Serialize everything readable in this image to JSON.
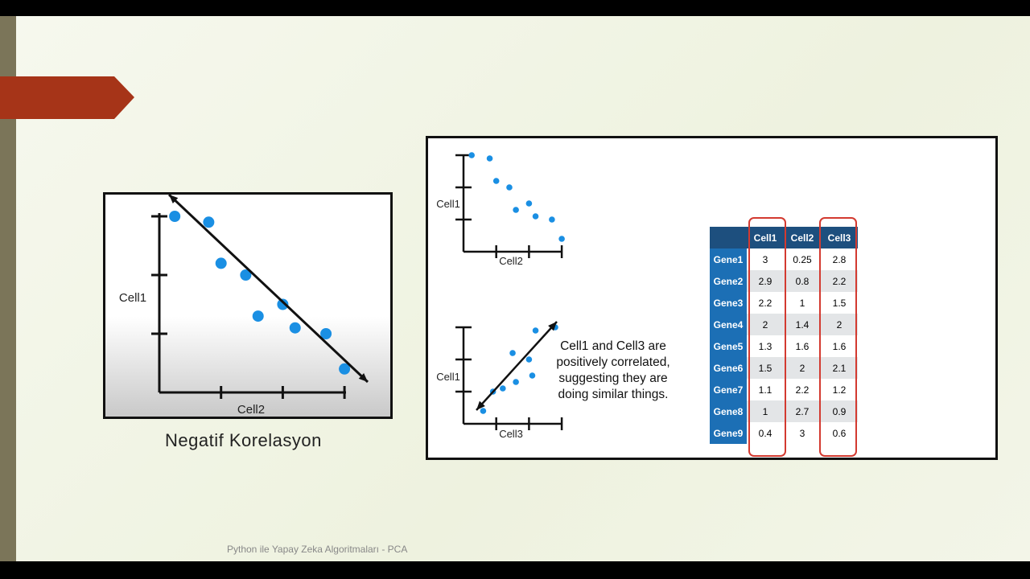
{
  "slide": {
    "caption": "Negatif Korelasyon",
    "footer": "Python ile Yapay Zeka Algoritmaları - PCA",
    "note": "Cell1 and Cell3 are positively correlated, suggesting they are doing similar things.",
    "accent": "#a63418",
    "dot_color": "#1a8fe3",
    "highlight_color": "#d33a30"
  },
  "table": {
    "headers": [
      "",
      "Cell1",
      "Cell2",
      "Cell3"
    ],
    "rows": [
      [
        "Gene1",
        "3",
        "0.25",
        "2.8"
      ],
      [
        "Gene2",
        "2.9",
        "0.8",
        "2.2"
      ],
      [
        "Gene3",
        "2.2",
        "1",
        "1.5"
      ],
      [
        "Gene4",
        "2",
        "1.4",
        "2"
      ],
      [
        "Gene5",
        "1.3",
        "1.6",
        "1.6"
      ],
      [
        "Gene6",
        "1.5",
        "2",
        "2.1"
      ],
      [
        "Gene7",
        "1.1",
        "2.2",
        "1.2"
      ],
      [
        "Gene8",
        "1",
        "2.7",
        "0.9"
      ],
      [
        "Gene9",
        "0.4",
        "3",
        "0.6"
      ]
    ]
  },
  "chart_data": [
    {
      "type": "scatter",
      "xlabel": "Cell2",
      "ylabel": "Cell1",
      "trendline": "negative",
      "x": [
        0.25,
        0.8,
        1,
        1.4,
        2,
        1.6,
        2.2,
        2.7,
        3
      ],
      "y": [
        3,
        2.9,
        2.2,
        2,
        1.5,
        1.3,
        1.1,
        1,
        0.4
      ]
    },
    {
      "type": "scatter",
      "xlabel": "Cell2",
      "ylabel": "Cell1",
      "x": [
        0.25,
        0.8,
        1,
        1.4,
        1.6,
        2,
        2.2,
        2.7,
        3
      ],
      "y": [
        3,
        2.9,
        2.2,
        2,
        1.3,
        1.5,
        1.1,
        1,
        0.4
      ]
    },
    {
      "type": "scatter",
      "xlabel": "Cell3",
      "ylabel": "Cell1",
      "trendline": "positive",
      "x": [
        2.8,
        2.2,
        1.5,
        2,
        1.6,
        2.1,
        1.2,
        0.9,
        0.6
      ],
      "y": [
        3,
        2.9,
        2.2,
        2,
        1.3,
        1.5,
        1.1,
        1,
        0.4
      ]
    }
  ]
}
